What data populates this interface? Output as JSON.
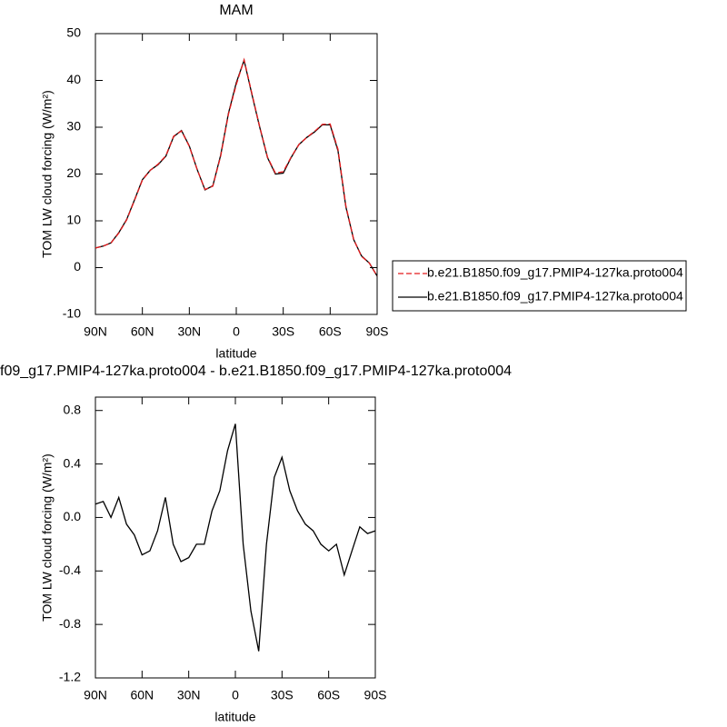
{
  "chart_data": [
    {
      "type": "line",
      "title": "MAM",
      "xlabel": "latitude",
      "ylabel": "TOM LW cloud forcing (W/m²)",
      "x": [
        90,
        85,
        80,
        75,
        70,
        65,
        60,
        55,
        50,
        45,
        40,
        35,
        30,
        25,
        20,
        15,
        10,
        5,
        0,
        -5,
        -10,
        -15,
        -20,
        -25,
        -30,
        -35,
        -40,
        -45,
        -50,
        -55,
        -60,
        -65,
        -70,
        -75,
        -80,
        -85,
        -90
      ],
      "series": [
        {
          "name": "b.e21.B1850.f09_g17.PMIP4-127ka.proto004",
          "color": "#e41a1c",
          "dash": true,
          "values": [
            4.2,
            4.6,
            5.3,
            7.4,
            10.2,
            14.4,
            18.7,
            20.8,
            22.1,
            23.9,
            28.1,
            29.2,
            25.9,
            21,
            16.7,
            17.4,
            23.8,
            32.8,
            39.1,
            44.4,
            37.2,
            30.1,
            23.6,
            20.2,
            20.5,
            23.6,
            26.3,
            27.8,
            29.1,
            30.6,
            30.7,
            25.3,
            13.2,
            6,
            2.4,
            1,
            -1.8
          ]
        },
        {
          "name": "b.e21.B1850.f09_g17.PMIP4-127ka.proto004",
          "color": "#000000",
          "dash": false,
          "values": [
            4.2,
            4.6,
            5.3,
            7.5,
            10.3,
            14.5,
            18.8,
            20.8,
            22,
            23.8,
            28,
            29.3,
            26,
            21,
            16.6,
            17.5,
            24,
            33,
            39.5,
            44.3,
            37,
            30,
            23.5,
            20,
            20.2,
            23.5,
            26.3,
            27.8,
            29,
            30.5,
            30.5,
            25,
            13,
            6,
            2.5,
            1,
            -1.8
          ]
        }
      ],
      "xlim": [
        90,
        -90
      ],
      "xticks": [
        {
          "value": 90,
          "label": "90N"
        },
        {
          "value": 60,
          "label": "60N"
        },
        {
          "value": 30,
          "label": "30N"
        },
        0,
        {
          "value": -30,
          "label": "30S"
        },
        {
          "value": -60,
          "label": "60S"
        },
        {
          "value": -90,
          "label": "90S"
        }
      ],
      "ylim": [
        -10,
        50
      ],
      "yticks": [
        -10,
        0,
        10,
        20,
        30,
        40,
        50
      ],
      "legend": "right"
    },
    {
      "type": "line",
      "title": "f09_g17.PMIP4-127ka.proto004 - b.e21.B1850.f09_g17.PMIP4-127ka.proto004",
      "xlabel": "latitude",
      "ylabel": "TOM LW cloud forcing (W/m²)",
      "x": [
        90,
        85,
        80,
        75,
        70,
        65,
        60,
        55,
        50,
        45,
        40,
        35,
        30,
        25,
        20,
        15,
        10,
        5,
        0,
        -5,
        -10,
        -15,
        -20,
        -25,
        -30,
        -35,
        -40,
        -45,
        -50,
        -55,
        -60,
        -65,
        -70,
        -75,
        -80,
        -85,
        -90
      ],
      "series": [
        {
          "color": "#000000",
          "dash": false,
          "values": [
            0.1,
            0.12,
            0,
            0.15,
            -0.05,
            -0.13,
            -0.28,
            -0.25,
            -0.1,
            0.15,
            -0.2,
            -0.33,
            -0.3,
            -0.2,
            -0.2,
            0.05,
            0.2,
            0.5,
            0.7,
            -0.2,
            -0.7,
            -1,
            -0.2,
            0.3,
            0.45,
            0.2,
            0.05,
            -0.05,
            -0.1,
            -0.2,
            -0.25,
            -0.2,
            -0.43,
            -0.25,
            -0.07,
            -0.12,
            -0.1
          ]
        }
      ],
      "xlim": [
        90,
        -90
      ],
      "xticks": [
        {
          "value": 90,
          "label": "90N"
        },
        {
          "value": 60,
          "label": "60N"
        },
        {
          "value": 30,
          "label": "30N"
        },
        0,
        {
          "value": -30,
          "label": "30S"
        },
        {
          "value": -60,
          "label": "60S"
        },
        {
          "value": -90,
          "label": "90S"
        }
      ],
      "ylim": [
        -1.2,
        0.9
      ],
      "yticks": [
        {
          "value": -1.2,
          "label": "-1.2"
        },
        {
          "value": -0.8,
          "label": "-0.8"
        },
        {
          "value": -0.4,
          "label": "-0.4"
        },
        {
          "value": 0,
          "label": "0.0"
        },
        {
          "value": 0.4,
          "label": "0.4"
        },
        {
          "value": 0.8,
          "label": "0.8"
        }
      ]
    }
  ]
}
